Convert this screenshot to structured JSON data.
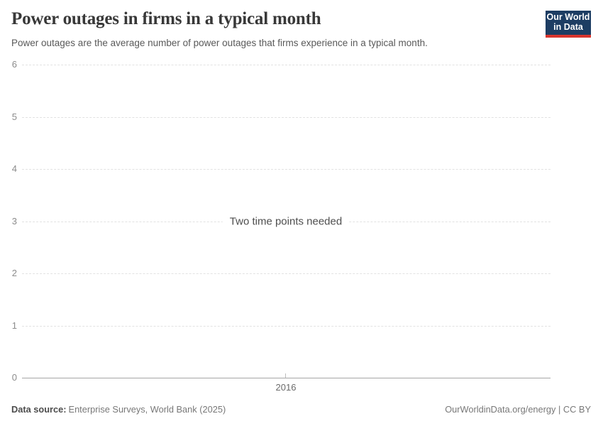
{
  "header": {
    "title": "Power outages in firms in a typical month",
    "subtitle": "Power outages are the average number of power outages that firms experience in a typical month.",
    "logo": {
      "line1": "Our World",
      "line2": "in Data",
      "bg_color": "#1d3d63",
      "bar_color": "#d8352e"
    }
  },
  "chart_data": {
    "type": "line",
    "title": "Power outages in firms in a typical month",
    "series": [],
    "message": "Two time points needed",
    "x": [
      2016
    ],
    "xticks": [
      "2016"
    ],
    "yticks": [
      6,
      5,
      4,
      3,
      2,
      1,
      0
    ],
    "ylim": [
      0,
      6
    ],
    "xlabel": "",
    "ylabel": "",
    "grid": "horizontal-dashed",
    "legend": "none"
  },
  "footer": {
    "source_label": "Data source:",
    "source_value": "Enterprise Surveys, World Bank (2025)",
    "credit": "OurWorldinData.org/energy | CC BY"
  },
  "colors": {
    "title": "#383838",
    "subtitle": "#595959",
    "gridline": "#e2e2e2",
    "axis_line": "#a6a6a6",
    "tick_label": "#8c8c8c",
    "message_text": "#4e4e4e",
    "footer_text": "#787878"
  }
}
